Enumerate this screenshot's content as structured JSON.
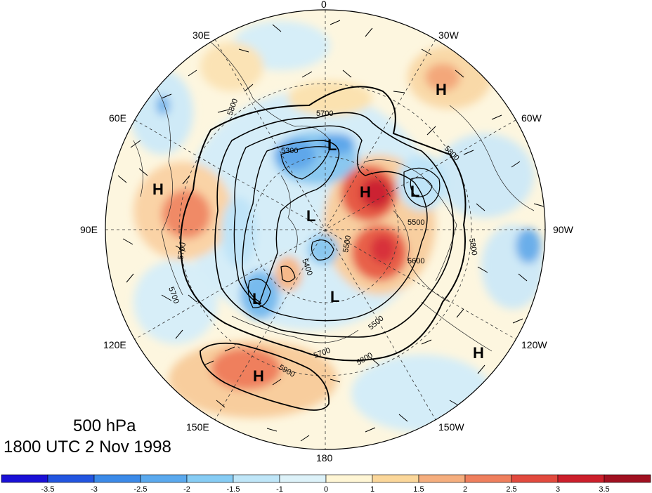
{
  "title": {
    "level": "500 hPa",
    "time": "1800 UTC 2 Nov 1998"
  },
  "longitude_labels": {
    "lon_0": "0",
    "lon_30w": "30W",
    "lon_30e": "30E",
    "lon_60e": "60E",
    "lon_60w": "60W",
    "lon_90e": "90E",
    "lon_90w": "90W",
    "lon_120e": "120E",
    "lon_120w": "120W",
    "lon_150e": "150E",
    "lon_150w": "150W",
    "lon_180": "180"
  },
  "pressure_centers": [
    {
      "label": "H",
      "region": "north Atlantic"
    },
    {
      "label": "H",
      "region": "central Asia"
    },
    {
      "label": "H",
      "region": "Greenland / Arctic"
    },
    {
      "label": "H",
      "region": "north Pacific"
    },
    {
      "label": "H",
      "region": "eastern Pacific"
    },
    {
      "label": "L",
      "region": "Scandinavia / Barents"
    },
    {
      "label": "L",
      "region": "Hudson Bay"
    },
    {
      "label": "L",
      "region": "central Arctic"
    },
    {
      "label": "L",
      "region": "east Siberia"
    },
    {
      "label": "L",
      "region": "Bering Sea"
    }
  ],
  "contour_labels": [
    "5300",
    "5700",
    "5700",
    "5800",
    "5800",
    "5800",
    "5800",
    "5500",
    "5500",
    "5600",
    "5500",
    "5700",
    "5900",
    "5700",
    "5400"
  ],
  "colorbar": {
    "ticks": [
      "-3.5",
      "-3",
      "-2.5",
      "-2",
      "-1.5",
      "-1",
      "0",
      "1",
      "1.5",
      "2",
      "2.5",
      "3",
      "3.5"
    ],
    "colors": [
      "#1a10d6",
      "#2255e0",
      "#3b8ae8",
      "#5aa9ee",
      "#86ccf4",
      "#bfe6f8",
      "#ddf2f9",
      "#fff6d5",
      "#fbd79a",
      "#f5ae7e",
      "#ef7f5d",
      "#e24a3e",
      "#cc1f2b",
      "#a01020"
    ]
  }
}
